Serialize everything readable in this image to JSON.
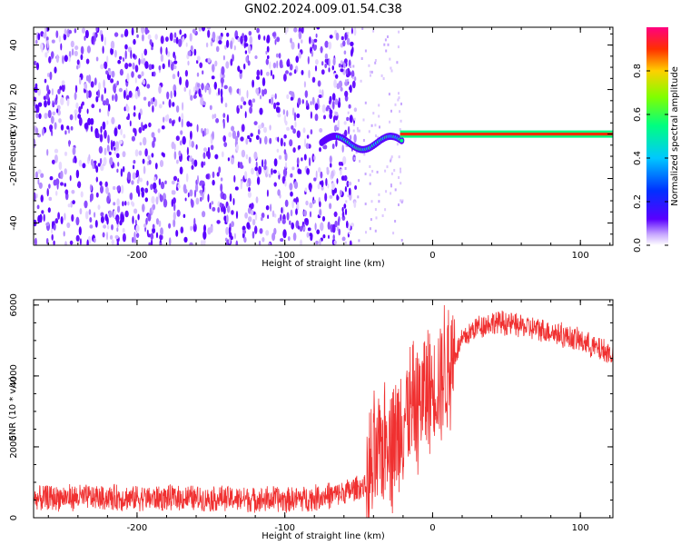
{
  "chart_data": [
    {
      "type": "heatmap",
      "title": "GN02.2024.009.01.54.C38",
      "xlabel": "Height of straight line (km)",
      "ylabel": "Frequency (Hz)",
      "xlim": [
        -270,
        122
      ],
      "ylim": [
        -50,
        48
      ],
      "xticks": [
        -200,
        -100,
        0,
        100
      ],
      "yticks": [
        -40,
        -20,
        0,
        20,
        40
      ],
      "colorbar": {
        "label": "Normalized spectral amplitude",
        "range": [
          0,
          1
        ],
        "ticks": [
          "0.0",
          "0.2",
          "0.4",
          "0.6",
          "0.8"
        ],
        "colormap": [
          "#5a00ff",
          "#0030ff",
          "#00c8ff",
          "#00ff80",
          "#80ff00",
          "#ffd000",
          "#ff3000",
          "#ff0080"
        ]
      },
      "features": {
        "noise_region_x": [
          -270,
          -60
        ],
        "signal_onset_x": -75,
        "stable_line_x": [
          -20,
          122
        ],
        "stable_line_frequency": 0,
        "stable_line_amplitude": 1.0
      }
    },
    {
      "type": "line",
      "title": "",
      "xlabel": "Height of straight line (km)",
      "ylabel": "SNR (10 * v/v)",
      "xlim": [
        -270,
        122
      ],
      "ylim": [
        0,
        6150
      ],
      "xticks": [
        -200,
        -100,
        0,
        100
      ],
      "yticks": [
        0,
        2000,
        4000,
        6000
      ],
      "color": "#f03030",
      "series": [
        {
          "x": [
            -270,
            -250,
            -200,
            -150,
            -100,
            -80,
            -60,
            -45,
            -38,
            -30,
            -25,
            -20,
            -15,
            -10,
            -5,
            0,
            10,
            20,
            30,
            40,
            50,
            60,
            80,
            100,
            110,
            122
          ],
          "values": [
            520,
            580,
            560,
            540,
            520,
            560,
            700,
            900,
            1500,
            2600,
            2100,
            3000,
            2800,
            3300,
            3500,
            3700,
            4200,
            5000,
            5400,
            5500,
            5500,
            5400,
            5250,
            5000,
            4800,
            4600
          ]
        }
      ]
    }
  ]
}
